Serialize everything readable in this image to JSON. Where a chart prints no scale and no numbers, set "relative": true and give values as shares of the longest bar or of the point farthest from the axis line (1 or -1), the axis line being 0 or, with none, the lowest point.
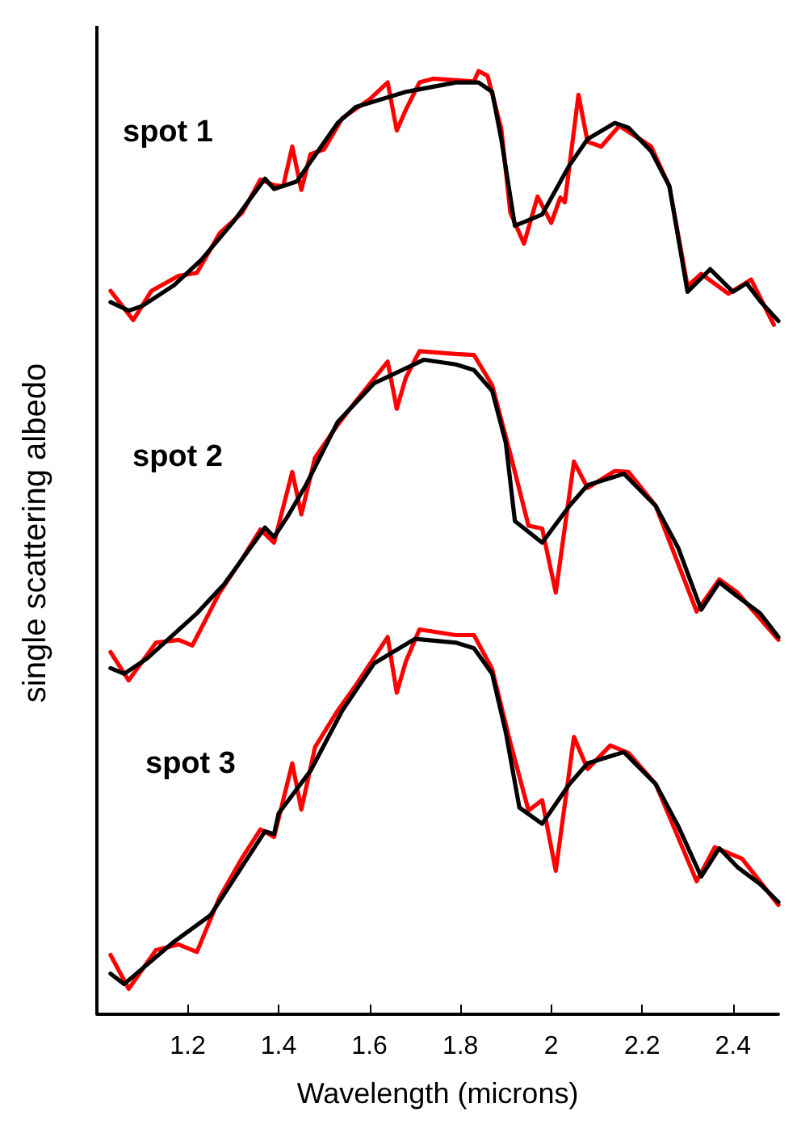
{
  "chart_data": {
    "type": "line",
    "relative": true,
    "xlabel": "Wavelength (microns)",
    "ylabel": "single scattering albedo",
    "xlim": [
      1.0,
      2.5
    ],
    "xticks": [
      1.2,
      1.4,
      1.6,
      1.8,
      2,
      2.2,
      2.4
    ],
    "marker": "none",
    "grid": false,
    "annotations": [
      "spot 1",
      "spot 2",
      "spot 3"
    ],
    "series": [
      {
        "color": "#ff0000",
        "x": [
          1.03,
          1.08,
          1.12,
          1.18,
          1.22,
          1.27,
          1.32,
          1.36,
          1.39,
          1.41,
          1.43,
          1.45,
          1.47,
          1.5,
          1.54,
          1.6,
          1.64,
          1.66,
          1.68,
          1.71,
          1.74,
          1.83,
          1.84,
          1.86,
          1.89,
          1.91,
          1.94,
          1.97,
          2.0,
          2.02,
          2.03,
          2.06,
          2.08,
          2.11,
          2.15,
          2.22,
          2.26,
          2.3,
          2.33,
          2.39,
          2.44,
          2.49
        ],
        "values": [
          0.767,
          0.736,
          0.767,
          0.783,
          0.786,
          0.828,
          0.85,
          0.885,
          0.879,
          0.878,
          0.92,
          0.874,
          0.912,
          0.917,
          0.95,
          0.97,
          0.988,
          0.937,
          0.959,
          0.988,
          0.992,
          0.989,
          1.0,
          0.995,
          0.939,
          0.85,
          0.817,
          0.867,
          0.839,
          0.866,
          0.861,
          0.975,
          0.925,
          0.92,
          0.942,
          0.92,
          0.878,
          0.772,
          0.785,
          0.764,
          0.779,
          0.731
        ]
      },
      {
        "color": "#000000",
        "x": [
          1.03,
          1.07,
          1.1,
          1.17,
          1.23,
          1.3,
          1.37,
          1.39,
          1.44,
          1.53,
          1.57,
          1.68,
          1.79,
          1.84,
          1.87,
          1.89,
          1.92,
          1.98,
          2.04,
          2.08,
          2.14,
          2.17,
          2.22,
          2.26,
          2.3,
          2.35,
          2.4,
          2.43,
          2.46,
          2.5
        ],
        "values": [
          0.755,
          0.746,
          0.751,
          0.773,
          0.8,
          0.84,
          0.886,
          0.875,
          0.883,
          0.945,
          0.962,
          0.978,
          0.988,
          0.988,
          0.978,
          0.928,
          0.836,
          0.848,
          0.9,
          0.928,
          0.945,
          0.94,
          0.915,
          0.878,
          0.766,
          0.79,
          0.766,
          0.775,
          0.756,
          0.735
        ]
      },
      {
        "color": "#ff0000",
        "x": [
          1.03,
          1.07,
          1.13,
          1.18,
          1.21,
          1.27,
          1.32,
          1.36,
          1.39,
          1.43,
          1.45,
          1.48,
          1.53,
          1.57,
          1.64,
          1.66,
          1.68,
          1.71,
          1.79,
          1.83,
          1.87,
          1.91,
          1.95,
          1.98,
          2.01,
          2.05,
          2.08,
          2.14,
          2.17,
          2.23,
          2.32,
          2.37,
          2.41,
          2.5
        ],
        "values": [
          0.384,
          0.354,
          0.394,
          0.397,
          0.391,
          0.447,
          0.483,
          0.514,
          0.5,
          0.575,
          0.53,
          0.59,
          0.625,
          0.65,
          0.692,
          0.642,
          0.675,
          0.703,
          0.7,
          0.699,
          0.667,
          0.594,
          0.518,
          0.515,
          0.447,
          0.586,
          0.558,
          0.576,
          0.575,
          0.539,
          0.427,
          0.461,
          0.447,
          0.397
        ]
      },
      {
        "color": "#000000",
        "x": [
          1.03,
          1.06,
          1.11,
          1.22,
          1.28,
          1.37,
          1.39,
          1.42,
          1.46,
          1.53,
          1.61,
          1.72,
          1.79,
          1.83,
          1.87,
          1.9,
          1.92,
          1.98,
          2.04,
          2.08,
          2.16,
          2.23,
          2.28,
          2.33,
          2.37,
          2.41,
          2.46,
          2.5
        ],
        "values": [
          0.367,
          0.361,
          0.377,
          0.425,
          0.456,
          0.516,
          0.506,
          0.528,
          0.561,
          0.628,
          0.669,
          0.694,
          0.689,
          0.683,
          0.661,
          0.606,
          0.523,
          0.5,
          0.539,
          0.561,
          0.573,
          0.539,
          0.494,
          0.429,
          0.458,
          0.443,
          0.425,
          0.4
        ]
      },
      {
        "color": "#ff0000",
        "x": [
          1.03,
          1.07,
          1.13,
          1.18,
          1.22,
          1.27,
          1.32,
          1.36,
          1.39,
          1.43,
          1.45,
          1.48,
          1.53,
          1.57,
          1.64,
          1.66,
          1.68,
          1.71,
          1.79,
          1.83,
          1.87,
          1.91,
          1.95,
          1.98,
          2.01,
          2.05,
          2.08,
          2.13,
          2.17,
          2.23,
          2.32,
          2.36,
          2.42,
          2.5
        ],
        "values": [
          0.063,
          0.027,
          0.068,
          0.074,
          0.066,
          0.124,
          0.166,
          0.196,
          0.188,
          0.266,
          0.217,
          0.283,
          0.322,
          0.349,
          0.4,
          0.341,
          0.374,
          0.408,
          0.402,
          0.402,
          0.366,
          0.288,
          0.216,
          0.227,
          0.152,
          0.294,
          0.26,
          0.285,
          0.277,
          0.244,
          0.141,
          0.177,
          0.165,
          0.116
        ]
      },
      {
        "color": "#000000",
        "x": [
          1.03,
          1.06,
          1.17,
          1.25,
          1.37,
          1.39,
          1.4,
          1.47,
          1.54,
          1.61,
          1.7,
          1.79,
          1.83,
          1.87,
          1.9,
          1.93,
          1.98,
          2.04,
          2.08,
          2.16,
          2.23,
          2.28,
          2.33,
          2.37,
          2.41,
          2.46,
          2.5
        ],
        "values": [
          0.043,
          0.032,
          0.077,
          0.105,
          0.194,
          0.191,
          0.213,
          0.258,
          0.322,
          0.372,
          0.398,
          0.394,
          0.388,
          0.361,
          0.299,
          0.219,
          0.202,
          0.244,
          0.266,
          0.278,
          0.244,
          0.199,
          0.146,
          0.176,
          0.156,
          0.138,
          0.119
        ]
      }
    ]
  }
}
